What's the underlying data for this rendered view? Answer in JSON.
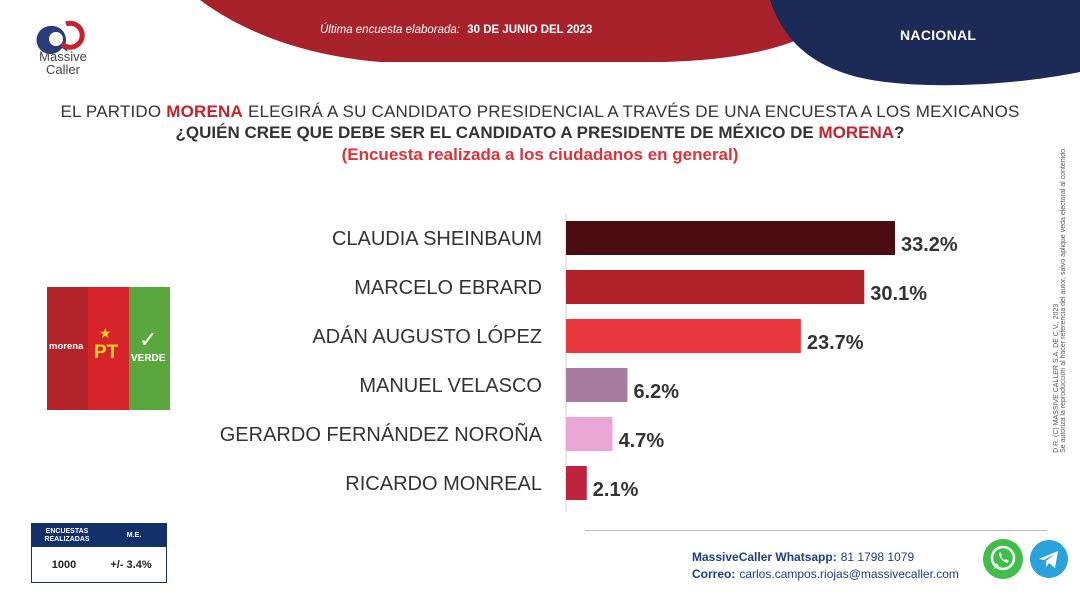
{
  "brand": {
    "name_line1": "Massive",
    "name_line2": "Caller"
  },
  "header": {
    "survey_label": "Última encuesta elaborada:",
    "survey_date": "30 DE JUNIO DEL 2023",
    "scope": "NACIONAL"
  },
  "titles": {
    "line1_pre": "EL PARTIDO ",
    "line1_party": "MORENA",
    "line1_post": " ELEGIRÁ A SU CANDIDATO PRESIDENCIAL A TRAVÉS DE UNA ENCUESTA A LOS MEXICANOS",
    "line2_pre": "¿QUIÉN CREE QUE DEBE SER EL CANDIDATO  A PRESIDENTE DE MÉXICO DE ",
    "line2_party": "MORENA",
    "line2_post": "?",
    "line3": "(Encuesta realizada  a los ciudadanos  en general)"
  },
  "party_logo": {
    "morena": "morena",
    "pt": "PT",
    "verde": "VERDE"
  },
  "side_note_1": "D.R. (C) MASSIVE CALLER S.A. DE C.V., 2023",
  "side_note_2": "Se autoriza la reproducción al hacer referencia del autor, salvo aplique veda electoral al contenido.",
  "stats": {
    "col1_header": "ENCUESTAS REALIZADAS",
    "col2_header": "M.E.",
    "col1_value": "1000",
    "col2_value": "+/- 3.4%"
  },
  "contact": {
    "whatsapp_label": "MassiveCaller Whatsapp:",
    "whatsapp_value": "81 1798 1079",
    "email_label": "Correo:",
    "email_value": "carlos.campos.riojas@massivecaller.com"
  },
  "colors": {
    "header_red": "#a8222b",
    "header_navy": "#1b2a56",
    "accent": "#c8202d"
  },
  "chart_data": {
    "type": "bar",
    "orientation": "horizontal",
    "categories": [
      "CLAUDIA SHEINBAUM",
      "MARCELO EBRARD",
      "ADÁN AUGUSTO LÓPEZ",
      "MANUEL VELASCO",
      "GERARDO FERNÁNDEZ NOROÑA",
      "RICARDO MONREAL"
    ],
    "values": [
      33.2,
      30.1,
      23.7,
      6.2,
      4.7,
      2.1
    ],
    "value_labels": [
      "33.2%",
      "30.1%",
      "23.7%",
      "6.2%",
      "4.7%",
      "2.1%"
    ],
    "bar_colors": [
      "#4a0c0f",
      "#b1212a",
      "#e8383d",
      "#a87ca1",
      "#e9a6d6",
      "#c0233f"
    ],
    "xlim": [
      0,
      33.2
    ],
    "grid": false
  }
}
